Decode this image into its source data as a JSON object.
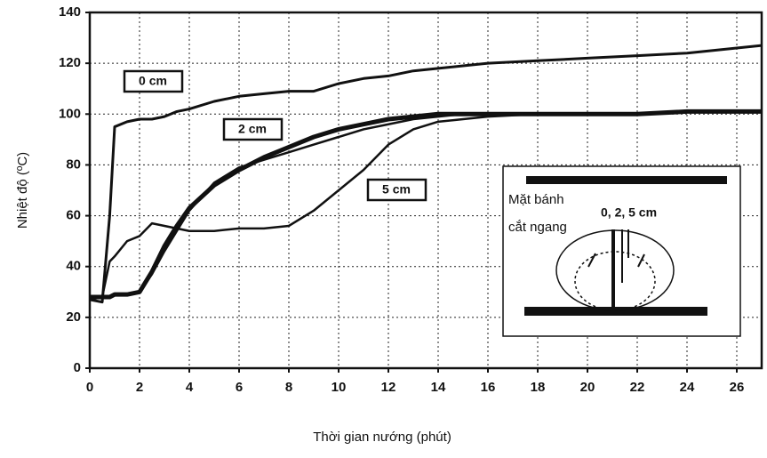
{
  "chart_data": {
    "type": "line",
    "x_label": "Thời gian nướng (phút)",
    "y_label": "Nhiệt độ (ºC)",
    "x": [
      0,
      0.5,
      0.8,
      1,
      1.5,
      2,
      2.5,
      3,
      3.5,
      4,
      5,
      6,
      7,
      8,
      9,
      10,
      11,
      12,
      13,
      14,
      15,
      16,
      18,
      20,
      22,
      24,
      26,
      27
    ],
    "series": [
      {
        "name": "0 cm",
        "color": "#111111",
        "width": 3,
        "values": [
          27,
          26,
          60,
          95,
          97,
          98,
          98,
          99,
          101,
          102,
          105,
          107,
          108,
          109,
          109,
          112,
          114,
          115,
          117,
          118,
          119,
          120,
          121,
          122,
          123,
          124,
          126,
          127
        ]
      },
      {
        "name": "2 cm",
        "color": "#111111",
        "width": 5,
        "values": [
          28,
          28,
          28,
          29,
          29,
          30,
          38,
          48,
          56,
          63,
          72,
          78,
          83,
          87,
          91,
          94,
          96,
          98,
          99,
          100,
          100,
          100,
          100,
          100,
          100,
          101,
          101,
          101
        ]
      },
      {
        "color": "#111111",
        "width": 2.5,
        "values": [
          28,
          28,
          28,
          29,
          29,
          30,
          37,
          46,
          54,
          62,
          73,
          79,
          82,
          85,
          88,
          91,
          94,
          96,
          98,
          99,
          100,
          100,
          100,
          100,
          100,
          101,
          101,
          101
        ]
      },
      {
        "name": "5 cm",
        "color": "#111111",
        "width": 2.5,
        "values": [
          27,
          28,
          42,
          44,
          50,
          52,
          57,
          56,
          55,
          54,
          54,
          55,
          55,
          56,
          62,
          70,
          78,
          88,
          94,
          97,
          98,
          99,
          100,
          100,
          100,
          101,
          101,
          101
        ]
      }
    ],
    "xlim": [
      0,
      27
    ],
    "ylim": [
      0,
      140
    ],
    "xticks": [
      0,
      2,
      4,
      6,
      8,
      10,
      12,
      14,
      16,
      18,
      20,
      22,
      24,
      26
    ],
    "yticks": [
      0,
      20,
      40,
      60,
      80,
      100,
      120,
      140
    ],
    "grid": true,
    "annotations": [
      "Mặt bánh",
      "cắt ngang",
      "0, 2, 5 cm"
    ]
  }
}
